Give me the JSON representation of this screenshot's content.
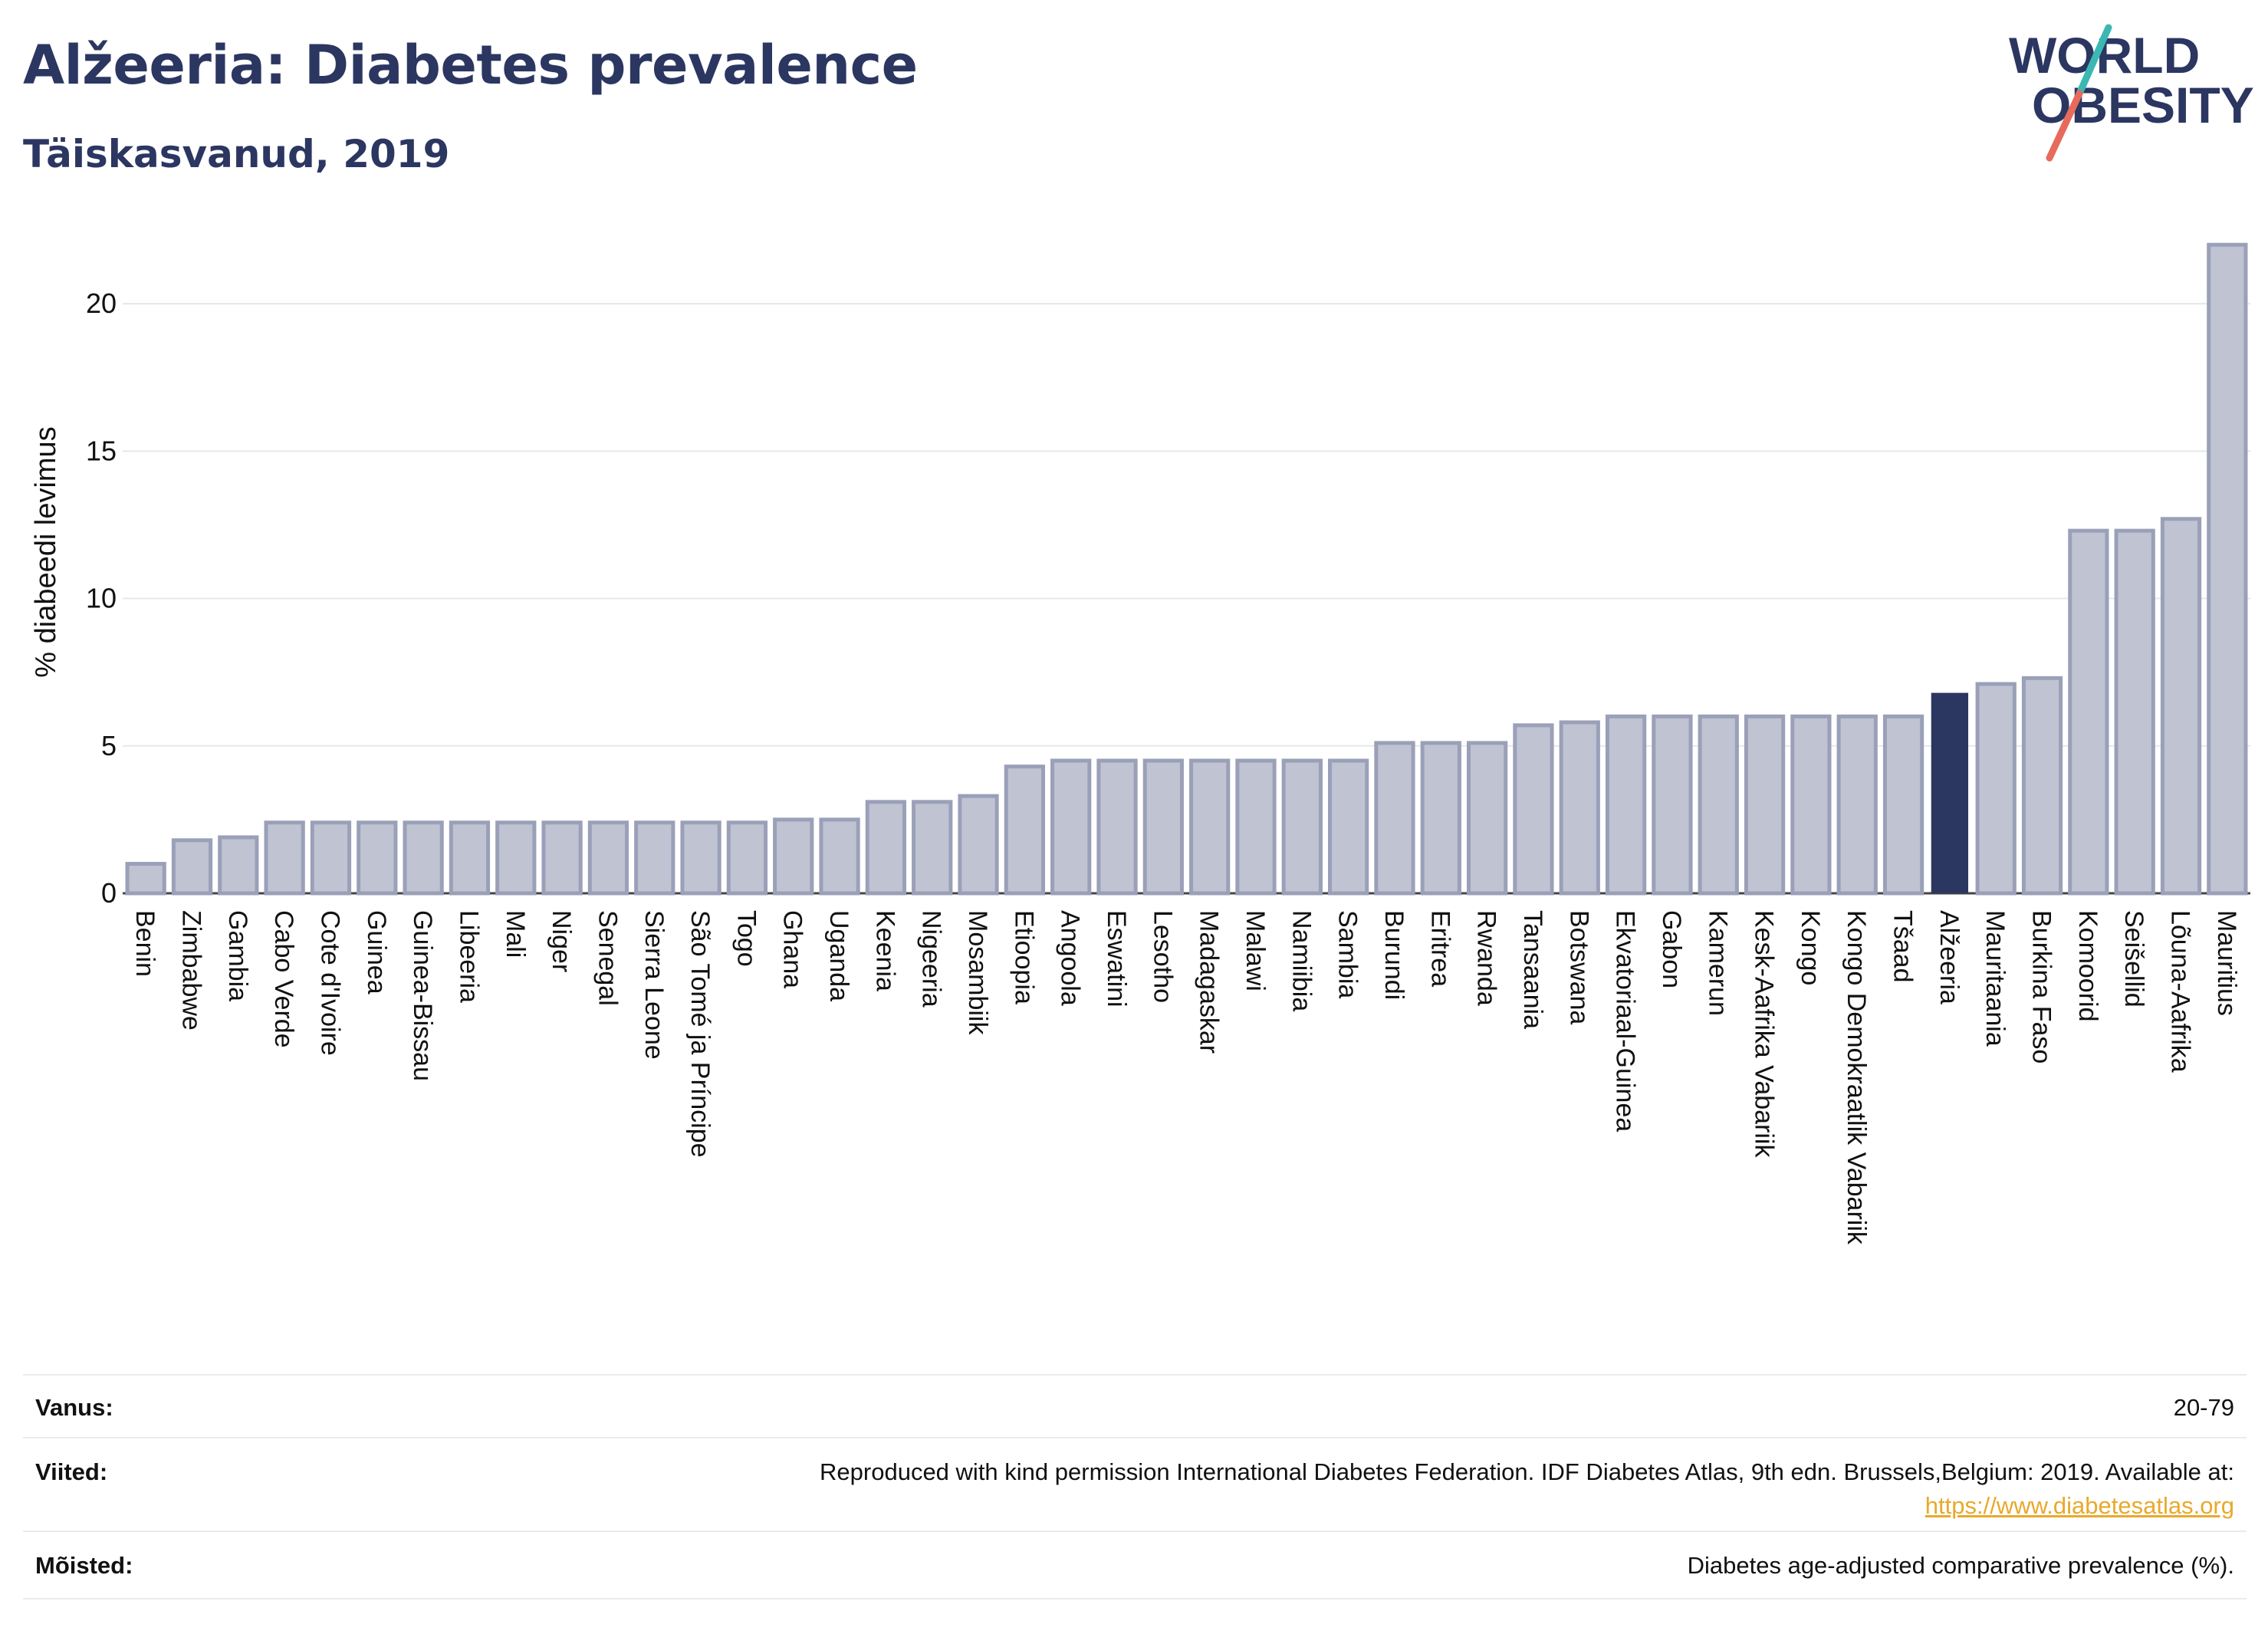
{
  "header": {
    "title": "Alžeeria: Diabetes prevalence",
    "subtitle": "Täiskasvanud, 2019",
    "logo_line1": "WORLD",
    "logo_line2": "OBESITY"
  },
  "colors": {
    "title": "#2b3661",
    "bar_default": "#bfc3d2",
    "bar_default_stroke": "#9aa0b8",
    "bar_highlight": "#2b3661",
    "grid": "#e5e7eb",
    "link": "#e8a92c",
    "logo_teal": "#3bb8b4",
    "logo_red": "#e66b5b"
  },
  "chart_data": {
    "type": "bar",
    "title": "Alžeeria: Diabetes prevalence",
    "subtitle": "Täiskasvanud, 2019",
    "xlabel": "",
    "ylabel": "% diabeedi levimus",
    "ylim": [
      0,
      22.5
    ],
    "yticks": [
      0,
      5,
      10,
      15,
      20
    ],
    "grid": true,
    "legend": "none",
    "highlight": "Alžeeria",
    "categories": [
      "Benin",
      "Zimbabwe",
      "Gambia",
      "Cabo Verde",
      "Cote d'Ivoire",
      "Guinea",
      "Guinea-Bissau",
      "Libeeria",
      "Mali",
      "Niger",
      "Senegal",
      "Sierra Leone",
      "São Tomé ja Príncipe",
      "Togo",
      "Ghana",
      "Uganda",
      "Keenia",
      "Nigeeria",
      "Mosambiik",
      "Etioopia",
      "Angoola",
      "Eswatini",
      "Lesotho",
      "Madagaskar",
      "Malawi",
      "Namiibia",
      "Sambia",
      "Burundi",
      "Eritrea",
      "Rwanda",
      "Tansaania",
      "Botswana",
      "Ekvatoriaal-Guinea",
      "Gabon",
      "Kamerun",
      "Kesk-Aafrika Vabariik",
      "Kongo",
      "Kongo Demokraatlik Vabariik",
      "Tšaad",
      "Alžeeria",
      "Mauritaania",
      "Burkina Faso",
      "Komoorid",
      "Seišellid",
      "Lõuna-Aafrika",
      "Mauritius"
    ],
    "values": [
      1.0,
      1.8,
      1.9,
      2.4,
      2.4,
      2.4,
      2.4,
      2.4,
      2.4,
      2.4,
      2.4,
      2.4,
      2.4,
      2.4,
      2.5,
      2.5,
      3.1,
      3.1,
      3.3,
      4.3,
      4.5,
      4.5,
      4.5,
      4.5,
      4.5,
      4.5,
      4.5,
      5.1,
      5.1,
      5.1,
      5.7,
      5.8,
      6.0,
      6.0,
      6.0,
      6.0,
      6.0,
      6.0,
      6.0,
      6.8,
      7.1,
      7.3,
      12.3,
      12.3,
      12.7,
      22.0
    ]
  },
  "meta": {
    "age_label": "Vanus:",
    "age_value": "20-79",
    "refs_label": "Viited:",
    "refs_value": "Reproduced with kind permission International Diabetes Federation. IDF Diabetes Atlas, 9th edn. Brussels,Belgium: 2019. Available at:",
    "refs_link": "https://www.diabetesatlas.org",
    "def_label": "Mõisted:",
    "def_value": "Diabetes age-adjusted comparative prevalence (%)."
  }
}
